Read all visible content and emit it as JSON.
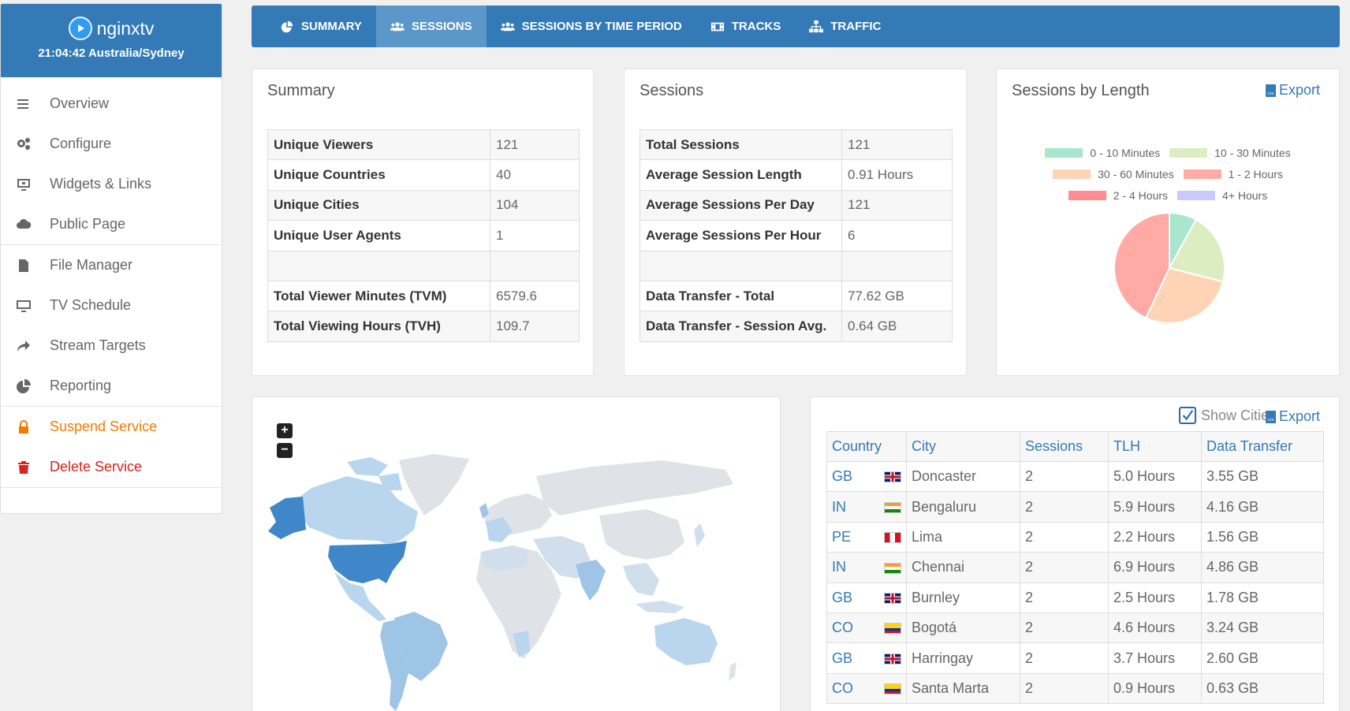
{
  "brand": {
    "name": "nginxtv",
    "time": "21:04:42 Australia/Sydney"
  },
  "sidebar": {
    "items": [
      {
        "label": "Overview",
        "icon": "hamburger-icon"
      },
      {
        "label": "Configure",
        "icon": "gears-icon"
      },
      {
        "label": "Widgets & Links",
        "icon": "widget-icon"
      },
      {
        "label": "Public Page",
        "icon": "cloud-icon"
      },
      {
        "label": "File Manager",
        "icon": "file-icon"
      },
      {
        "label": "TV Schedule",
        "icon": "monitor-icon"
      },
      {
        "label": "Stream Targets",
        "icon": "share-arrow-icon"
      },
      {
        "label": "Reporting",
        "icon": "pie-chart-icon"
      },
      {
        "label": "Suspend Service",
        "icon": "lock-icon"
      },
      {
        "label": "Delete Service",
        "icon": "trash-icon"
      }
    ]
  },
  "tabs": [
    {
      "label": "SUMMARY",
      "icon": "pie-chart-icon"
    },
    {
      "label": "SESSIONS",
      "icon": "users-icon"
    },
    {
      "label": "SESSIONS BY TIME PERIOD",
      "icon": "users-icon"
    },
    {
      "label": "TRACKS",
      "icon": "film-icon"
    },
    {
      "label": "TRAFFIC",
      "icon": "network-icon"
    }
  ],
  "summary": {
    "title": "Summary",
    "rows": [
      {
        "k": "Unique Viewers",
        "v": "121"
      },
      {
        "k": "Unique Countries",
        "v": "40"
      },
      {
        "k": "Unique Cities",
        "v": "104"
      },
      {
        "k": "Unique User Agents",
        "v": "1"
      },
      {
        "k": "",
        "v": ""
      },
      {
        "k": "Total Viewer Minutes (TVM)",
        "v": "6579.6"
      },
      {
        "k": "Total Viewing Hours (TVH)",
        "v": "109.7"
      }
    ]
  },
  "sessions": {
    "title": "Sessions",
    "rows": [
      {
        "k": "Total Sessions",
        "v": "121"
      },
      {
        "k": "Average Session Length",
        "v": "0.91 Hours"
      },
      {
        "k": "Average Sessions Per Day",
        "v": "121"
      },
      {
        "k": "Average Sessions Per Hour",
        "v": "6"
      },
      {
        "k": "",
        "v": ""
      },
      {
        "k": "Data Transfer - Total",
        "v": "77.62 GB"
      },
      {
        "k": "Data Transfer - Session Avg.",
        "v": "0.64 GB"
      }
    ]
  },
  "length_panel": {
    "title": "Sessions by Length",
    "export": "Export"
  },
  "chart_data": {
    "type": "pie",
    "title": "Sessions by Length",
    "legend_position": "top",
    "series": [
      {
        "name": "0 - 10 Minutes",
        "value": 8,
        "color": "#a8e6cf"
      },
      {
        "name": "10 - 30 Minutes",
        "value": 21,
        "color": "#dcedc1"
      },
      {
        "name": "30 - 60 Minutes",
        "value": 28,
        "color": "#ffd3b6"
      },
      {
        "name": "1 - 2 Hours",
        "value": 43,
        "color": "#ffaaa5"
      },
      {
        "name": "2 - 4 Hours",
        "value": 0,
        "color": "#ff8b94"
      },
      {
        "name": "4+ Hours",
        "value": 0,
        "color": "#c9c9ff"
      }
    ]
  },
  "cities": {
    "show_cities_label": "Show Cities",
    "show_cities_checked": true,
    "export": "Export",
    "headers": [
      "Country",
      "City",
      "Sessions",
      "TLH",
      "Data Transfer"
    ],
    "rows": [
      {
        "country": "GB",
        "flag": "gb",
        "city": "Doncaster",
        "sessions": "2",
        "tlh": "5.0 Hours",
        "dt": "3.55 GB"
      },
      {
        "country": "IN",
        "flag": "in",
        "city": "Bengaluru",
        "sessions": "2",
        "tlh": "5.9 Hours",
        "dt": "4.16 GB"
      },
      {
        "country": "PE",
        "flag": "pe",
        "city": "Lima",
        "sessions": "2",
        "tlh": "2.2 Hours",
        "dt": "1.56 GB"
      },
      {
        "country": "IN",
        "flag": "in",
        "city": "Chennai",
        "sessions": "2",
        "tlh": "6.9 Hours",
        "dt": "4.86 GB"
      },
      {
        "country": "GB",
        "flag": "gb",
        "city": "Burnley",
        "sessions": "2",
        "tlh": "2.5 Hours",
        "dt": "1.78 GB"
      },
      {
        "country": "CO",
        "flag": "co",
        "city": "Bogotá",
        "sessions": "2",
        "tlh": "4.6 Hours",
        "dt": "3.24 GB"
      },
      {
        "country": "GB",
        "flag": "gb",
        "city": "Harringay",
        "sessions": "2",
        "tlh": "3.7 Hours",
        "dt": "2.60 GB"
      },
      {
        "country": "CO",
        "flag": "co",
        "city": "Santa Marta",
        "sessions": "2",
        "tlh": "0.9 Hours",
        "dt": "0.63 GB"
      }
    ]
  },
  "map": {
    "zoom_in": "+",
    "zoom_out": "−"
  }
}
